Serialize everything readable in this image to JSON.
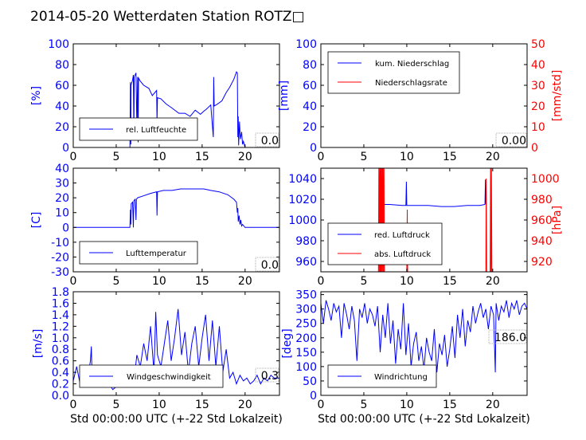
{
  "title": "2014-05-20 Wetterdaten Station ROTZ",
  "title_glyph": "□",
  "colors": {
    "primary": "#0000ff",
    "secondary": "#ff0000",
    "axis": "#000000"
  },
  "chart_data": [
    {
      "id": "humidity",
      "type": "line",
      "ylabel": "[%]",
      "ylim": [
        0,
        100
      ],
      "yticks": [
        0,
        20,
        40,
        60,
        80,
        100
      ],
      "xlim": [
        0,
        24
      ],
      "xticks": [
        0,
        5,
        10,
        15,
        20
      ],
      "xlabel": "",
      "current_value": "0.0",
      "legend": {
        "placement": "lower-left",
        "entries": [
          "rel. Luftfeuchte"
        ]
      },
      "series": [
        {
          "name": "rel. Luftfeuchte",
          "color": "#0000ff",
          "x": [
            0,
            6.6,
            6.65,
            6.7,
            6.72,
            6.9,
            7.0,
            7.05,
            7.1,
            7.3,
            7.4,
            7.5,
            7.55,
            7.6,
            7.8,
            8.2,
            8.8,
            9.2,
            9.7,
            9.75,
            9.8,
            10.2,
            10.8,
            11.5,
            12.3,
            13.0,
            13.6,
            14.2,
            14.8,
            15.2,
            15.5,
            16.0,
            16.3,
            16.35,
            16.4,
            16.8,
            17.3,
            17.8,
            18.2,
            18.7,
            19.0,
            19.1,
            19.15,
            19.2,
            19.25,
            19.35,
            19.45,
            19.6,
            19.7,
            19.8,
            20.0,
            24
          ],
          "y": [
            0,
            0,
            63,
            3,
            60,
            65,
            70,
            10,
            68,
            72,
            20,
            68,
            5,
            67,
            64,
            60,
            57,
            50,
            55,
            25,
            48,
            47,
            42,
            38,
            33,
            33,
            30,
            36,
            32,
            35,
            37,
            41,
            10,
            68,
            40,
            42,
            45,
            53,
            58,
            66,
            73,
            72,
            10,
            30,
            2,
            25,
            8,
            15,
            3,
            6,
            0,
            0
          ]
        }
      ]
    },
    {
      "id": "precipitation",
      "type": "line",
      "ylabel": "[mm]",
      "ylim": [
        0,
        100
      ],
      "yticks": [
        0,
        20,
        40,
        60,
        80,
        100
      ],
      "y2label": "[mm/std]",
      "y2lim": [
        0,
        50
      ],
      "y2ticks": [
        0,
        10,
        20,
        30,
        40,
        50
      ],
      "xlim": [
        0,
        24
      ],
      "xticks": [
        0,
        5,
        10,
        15,
        20
      ],
      "xlabel": "",
      "current_value": "0.00",
      "legend": {
        "placement": "upper-left",
        "entries": [
          "kum. Niederschlag",
          "Niederschlagsrate"
        ]
      },
      "series": [
        {
          "name": "kum. Niederschlag",
          "color": "#0000ff",
          "axis": "left",
          "x": [
            0,
            24
          ],
          "y": [
            0,
            0
          ]
        },
        {
          "name": "Niederschlagsrate",
          "color": "#ff0000",
          "axis": "right",
          "x": [
            0,
            24
          ],
          "y": [
            0,
            0
          ]
        }
      ]
    },
    {
      "id": "temperature",
      "type": "line",
      "ylabel": "[C]",
      "ylim": [
        -30,
        40
      ],
      "yticks": [
        -30,
        -20,
        -10,
        0,
        10,
        20,
        30,
        40
      ],
      "xlim": [
        0,
        24
      ],
      "xticks": [
        0,
        5,
        10,
        15,
        20
      ],
      "xlabel": "",
      "current_value": "0.0",
      "legend": {
        "placement": "lower-left",
        "entries": [
          "Lufttemperatur"
        ]
      },
      "series": [
        {
          "name": "Lufttemperatur",
          "color": "#0000ff",
          "x": [
            0,
            6.6,
            6.65,
            6.7,
            6.75,
            6.9,
            7.0,
            7.05,
            7.2,
            7.3,
            7.35,
            7.5,
            8.0,
            9.0,
            9.7,
            9.75,
            9.8,
            10.5,
            11.5,
            12.5,
            13.5,
            14.5,
            15.2,
            16.0,
            17.0,
            18.0,
            18.7,
            19.0,
            19.1,
            19.15,
            19.2,
            19.3,
            19.4,
            19.5,
            19.6,
            19.7,
            20.0,
            24
          ],
          "y": [
            0,
            0,
            12,
            2,
            16,
            17,
            0,
            18,
            19,
            5,
            19,
            20,
            21,
            23,
            24,
            8,
            24,
            25,
            25,
            26,
            26,
            26,
            26,
            25,
            24,
            22,
            19,
            17,
            10,
            13,
            4,
            8,
            2,
            5,
            1,
            2,
            0,
            0
          ]
        }
      ]
    },
    {
      "id": "pressure",
      "type": "line",
      "ylabel": "",
      "ylim": [
        950,
        1050
      ],
      "yticks": [
        960,
        980,
        1000,
        1020,
        1040
      ],
      "y2label": "[hPa]",
      "y2lim": [
        910,
        1010
      ],
      "y2ticks": [
        920,
        940,
        960,
        980,
        1000
      ],
      "xlim": [
        0,
        24
      ],
      "xticks": [
        0,
        5,
        10,
        15,
        20
      ],
      "xlabel": "",
      "legend": {
        "placement": "lower-left",
        "entries": [
          "red. Luftdruck",
          "abs. Luftdruck"
        ]
      },
      "series": [
        {
          "name": "red. Luftdruck",
          "color": "#0000ff",
          "axis": "left",
          "x": [
            6.8,
            6.85,
            6.9,
            7.0,
            7.05,
            7.1,
            7.2,
            8.0,
            9.5,
            9.9,
            9.95,
            10.0,
            11.0,
            12.5,
            14.0,
            15.5,
            17.0,
            18.5,
            19.1,
            19.15,
            19.2,
            19.3
          ],
          "y": [
            1012,
            1048,
            1014,
            1050,
            1015,
            1030,
            1015,
            1015,
            1014,
            1014,
            1037,
            1014,
            1014,
            1014,
            1013,
            1013,
            1014,
            1014,
            1015,
            1039,
            1016,
            1016
          ]
        },
        {
          "name": "abs. Luftdruck",
          "color": "#ff0000",
          "axis": "right",
          "x": [
            6.7,
            6.75,
            6.8,
            6.85,
            6.9,
            6.95,
            7.0,
            7.05,
            7.1,
            7.15,
            7.2,
            7.25,
            7.3,
            7.35,
            7.4,
            10.0,
            10.05,
            10.1,
            10.15,
            19.2,
            19.25,
            19.3,
            19.35,
            19.7,
            19.75,
            19.8,
            19.85,
            19.9,
            19.95
          ],
          "y": [
            910,
            1010,
            910,
            1010,
            910,
            1010,
            910,
            1010,
            910,
            1010,
            910,
            1010,
            910,
            1010,
            910,
            910,
            970,
            910,
            910,
            910,
            1000,
            910,
            910,
            910,
            1010,
            910,
            1010,
            910,
            910
          ]
        }
      ]
    },
    {
      "id": "windspeed",
      "type": "line",
      "ylabel": "[m/s]",
      "ylim": [
        0,
        1.8
      ],
      "yticks": [
        0.0,
        0.2,
        0.4,
        0.6,
        0.8,
        1.0,
        1.2,
        1.4,
        1.6,
        1.8
      ],
      "xlim": [
        0,
        24
      ],
      "xticks": [
        0,
        5,
        10,
        15,
        20
      ],
      "xlabel": "Std 00:00:00 UTC (+-22 Std Lokalzeit)",
      "current_value": "0.3",
      "legend": {
        "placement": "lower-center",
        "entries": [
          "Windgeschwindigkeit"
        ]
      },
      "series": [
        {
          "name": "Windgeschwindigkeit",
          "color": "#0000ff",
          "x": [
            0,
            0.4,
            0.8,
            1.2,
            1.6,
            2.0,
            2.1,
            2.2,
            2.6,
            3.0,
            3.4,
            3.8,
            4.2,
            4.6,
            5.0,
            5.4,
            5.8,
            6.2,
            6.6,
            6.9,
            7.1,
            7.4,
            7.8,
            8.2,
            8.6,
            9.0,
            9.4,
            9.6,
            9.8,
            10.2,
            10.6,
            11.0,
            11.4,
            11.8,
            12.2,
            12.6,
            13.0,
            13.4,
            13.8,
            14.2,
            14.6,
            15.0,
            15.4,
            15.8,
            16.2,
            16.6,
            17.0,
            17.4,
            17.8,
            18.2,
            18.6,
            19.0,
            19.4,
            19.8,
            20.2,
            20.6,
            21.0,
            21.4,
            21.8,
            22.2,
            22.6,
            23.0,
            23.4,
            24
          ],
          "y": [
            0.25,
            0.5,
            0.2,
            0.3,
            0.25,
            0.6,
            0.85,
            0.3,
            0.2,
            0.35,
            0.15,
            0.25,
            0.2,
            0.1,
            0.15,
            0.2,
            0.25,
            0.3,
            0.2,
            0.5,
            0.3,
            0.7,
            0.5,
            0.9,
            0.6,
            1.2,
            0.4,
            1.45,
            0.7,
            0.5,
            0.9,
            1.3,
            0.6,
            1.0,
            1.5,
            0.7,
            1.1,
            0.4,
            0.9,
            1.2,
            0.5,
            1.0,
            1.4,
            0.6,
            1.3,
            0.5,
            1.2,
            0.4,
            0.8,
            0.3,
            0.4,
            0.2,
            0.35,
            0.25,
            0.3,
            0.2,
            0.25,
            0.35,
            0.2,
            0.3,
            0.25,
            0.35,
            0.3,
            0.3
          ]
        }
      ]
    },
    {
      "id": "winddirection",
      "type": "line",
      "ylabel": "[deg]",
      "ylim": [
        0,
        360
      ],
      "yticks": [
        0,
        50,
        100,
        150,
        200,
        250,
        300,
        350
      ],
      "xlim": [
        0,
        24
      ],
      "xticks": [
        0,
        5,
        10,
        15,
        20
      ],
      "xlabel": "Std 00:00:00 UTC (+-22 Std Lokalzeit)",
      "current_value": "186.0",
      "legend": {
        "placement": "lower-left",
        "entries": [
          "Windrichtung"
        ]
      },
      "series": [
        {
          "name": "Windrichtung",
          "color": "#0000ff",
          "x": [
            0,
            0.3,
            0.6,
            0.9,
            1.2,
            1.5,
            1.8,
            2.1,
            2.4,
            2.7,
            3.0,
            3.3,
            3.6,
            3.9,
            4.2,
            4.5,
            4.8,
            5.1,
            5.4,
            5.7,
            6.0,
            6.3,
            6.6,
            6.9,
            7.2,
            7.5,
            7.8,
            8.1,
            8.4,
            8.7,
            9.0,
            9.3,
            9.6,
            9.9,
            10.2,
            10.5,
            10.8,
            11.1,
            11.4,
            11.7,
            12.0,
            12.3,
            12.6,
            12.9,
            13.2,
            13.5,
            13.8,
            14.1,
            14.4,
            14.7,
            15.0,
            15.3,
            15.6,
            15.9,
            16.2,
            16.5,
            16.8,
            17.1,
            17.4,
            17.7,
            18.0,
            18.3,
            18.6,
            18.9,
            19.2,
            19.5,
            19.8,
            20.1,
            20.3,
            20.4,
            20.7,
            21.0,
            21.3,
            21.6,
            21.9,
            22.2,
            22.5,
            22.8,
            23.1,
            23.4,
            23.7,
            24
          ],
          "y": [
            320,
            250,
            330,
            300,
            260,
            320,
            290,
            310,
            200,
            320,
            280,
            230,
            310,
            260,
            120,
            300,
            270,
            320,
            250,
            300,
            280,
            240,
            310,
            150,
            280,
            200,
            320,
            180,
            260,
            110,
            230,
            160,
            320,
            140,
            250,
            100,
            180,
            220,
            120,
            170,
            90,
            200,
            150,
            120,
            230,
            80,
            180,
            140,
            210,
            100,
            160,
            240,
            130,
            280,
            200,
            300,
            170,
            260,
            220,
            310,
            250,
            290,
            320,
            270,
            300,
            230,
            310,
            280,
            80,
            320,
            260,
            310,
            290,
            330,
            270,
            320,
            300,
            330,
            280,
            310,
            320,
            300
          ]
        }
      ]
    }
  ]
}
